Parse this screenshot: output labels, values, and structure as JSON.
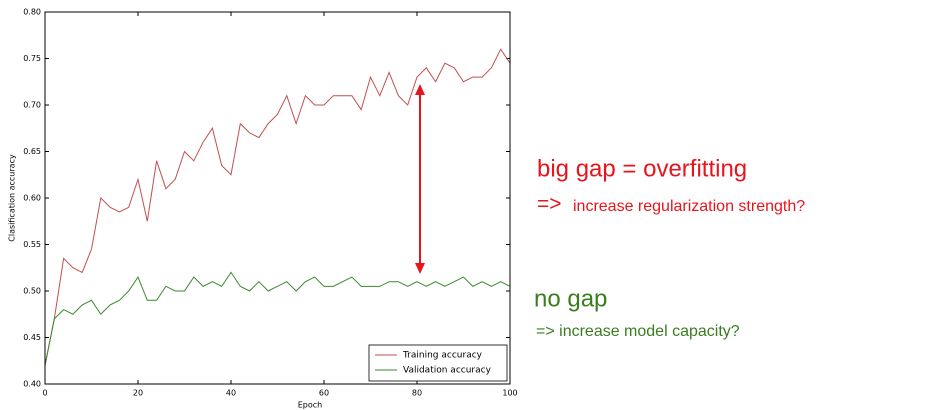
{
  "chart_data": {
    "type": "line",
    "xlabel": "Epoch",
    "ylabel": "Clasification accuracy",
    "x": [
      0,
      2,
      4,
      6,
      8,
      10,
      12,
      14,
      16,
      18,
      20,
      22,
      24,
      26,
      28,
      30,
      32,
      34,
      36,
      38,
      40,
      42,
      44,
      46,
      48,
      50,
      52,
      54,
      56,
      58,
      60,
      62,
      64,
      66,
      68,
      70,
      72,
      74,
      76,
      78,
      80,
      82,
      84,
      86,
      88,
      90,
      92,
      94,
      96,
      98,
      100
    ],
    "series": [
      {
        "name": "Training accuracy",
        "color": "#c0504d",
        "values": [
          0.42,
          0.47,
          0.535,
          0.525,
          0.52,
          0.545,
          0.6,
          0.59,
          0.585,
          0.59,
          0.62,
          0.575,
          0.64,
          0.61,
          0.62,
          0.65,
          0.64,
          0.66,
          0.675,
          0.635,
          0.625,
          0.68,
          0.67,
          0.665,
          0.68,
          0.69,
          0.71,
          0.68,
          0.71,
          0.7,
          0.7,
          0.71,
          0.71,
          0.71,
          0.695,
          0.73,
          0.71,
          0.735,
          0.71,
          0.7,
          0.73,
          0.74,
          0.725,
          0.745,
          0.74,
          0.725,
          0.73,
          0.73,
          0.74,
          0.76,
          0.745
        ]
      },
      {
        "name": "Validation accuracy",
        "color": "#3a8a2e",
        "values": [
          0.42,
          0.47,
          0.48,
          0.475,
          0.485,
          0.49,
          0.475,
          0.485,
          0.49,
          0.5,
          0.515,
          0.49,
          0.49,
          0.505,
          0.5,
          0.5,
          0.515,
          0.505,
          0.51,
          0.505,
          0.52,
          0.505,
          0.5,
          0.51,
          0.5,
          0.505,
          0.51,
          0.5,
          0.51,
          0.515,
          0.505,
          0.505,
          0.51,
          0.515,
          0.505,
          0.505,
          0.505,
          0.51,
          0.51,
          0.505,
          0.51,
          0.505,
          0.51,
          0.505,
          0.51,
          0.515,
          0.505,
          0.51,
          0.505,
          0.51,
          0.505
        ]
      }
    ],
    "xlim": [
      0,
      100
    ],
    "ylim": [
      0.4,
      0.8
    ],
    "xticks": [
      0,
      20,
      40,
      60,
      80,
      100
    ],
    "yticks": [
      {
        "value": 0.4,
        "label": "0.40"
      },
      0.45,
      {
        "value": 0.5,
        "label": "0.50"
      },
      0.55,
      {
        "value": 0.6,
        "label": "0.60"
      },
      0.65,
      {
        "value": 0.7,
        "label": "0.70"
      },
      0.75,
      {
        "value": 0.8,
        "label": "0.80"
      }
    ],
    "legend": "lower right",
    "annotations": [
      "big gap = overfitting",
      "=>",
      "increase regularization strength?",
      "no gap",
      "=> increase model capacity?"
    ]
  }
}
